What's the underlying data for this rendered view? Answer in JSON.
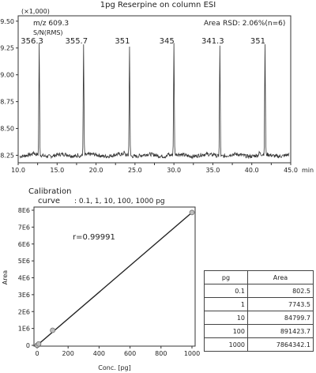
{
  "chromatogram": {
    "title": "1pg Reserpine on column ESI",
    "scale_label": "(×1,000)",
    "mz_label": "m/z 609.3",
    "sn_label": "S/N(RMS)",
    "area_label": "Area",
    "rsd_label": "RSD: 2.06%(n=6)",
    "x_unit": "min"
  },
  "calibration": {
    "title_line1": "Calibration",
    "title_line2": "curve",
    "range_text": ": 0.1, 1, 10, 100, 1000 pg",
    "r_text": "r=0.99991",
    "table": {
      "headers": [
        "pg",
        "Area"
      ],
      "rows": [
        [
          "0.1",
          "802.5"
        ],
        [
          "1",
          "7743.5"
        ],
        [
          "10",
          "84799.7"
        ],
        [
          "100",
          "891423.7"
        ],
        [
          "1000",
          "7864342.1"
        ]
      ]
    }
  },
  "chart_data": [
    {
      "type": "line",
      "title": "1pg Reserpine on column ESI",
      "xlabel": "min",
      "ylabel": "(×1,000)",
      "xlim": [
        10.0,
        45.0
      ],
      "ylim": [
        8.18,
        9.55
      ],
      "x_ticks": [
        "10.0",
        "12.5",
        "15.0",
        "17.5",
        "20.0",
        "22.5",
        "25.0",
        "27.5",
        "30.0",
        "32.5",
        "35.0",
        "37.5",
        "40.0",
        "42.5",
        "45.0"
      ],
      "y_ticks": [
        "8.25",
        "8.50",
        "8.75",
        "9.00",
        "9.25",
        "9.50"
      ],
      "baseline": 8.25,
      "peaks": [
        {
          "rt": 12.7,
          "height": 9.28,
          "sn": "356.3"
        },
        {
          "rt": 18.4,
          "height": 9.28,
          "sn": "355.7"
        },
        {
          "rt": 24.3,
          "height": 9.28,
          "sn": "351"
        },
        {
          "rt": 30.0,
          "height": 9.28,
          "sn": "345"
        },
        {
          "rt": 35.9,
          "height": 9.28,
          "sn": "341.3"
        },
        {
          "rt": 41.7,
          "height": 9.28,
          "sn": "351"
        }
      ],
      "grid": false,
      "color": "#333333"
    },
    {
      "type": "scatter",
      "xlabel": "Conc. [pg]",
      "ylabel": "Area",
      "xlim": [
        0,
        1000
      ],
      "ylim": [
        0,
        8000000
      ],
      "x_ticks": [
        "0",
        "200",
        "400",
        "600",
        "800",
        "1000"
      ],
      "y_ticks": [
        "0",
        "1E6",
        "2E6",
        "3E6",
        "4E6",
        "5E6",
        "6E6",
        "7E6",
        "8E6"
      ],
      "x": [
        0.1,
        1,
        10,
        100,
        1000
      ],
      "y": [
        802.5,
        7743.5,
        84799.7,
        891423.7,
        7864342.1
      ],
      "fit_line": {
        "x": [
          0,
          1000
        ],
        "y": [
          0,
          7864342.1
        ]
      },
      "grid": false,
      "point_color": "#bdbdbd"
    }
  ]
}
